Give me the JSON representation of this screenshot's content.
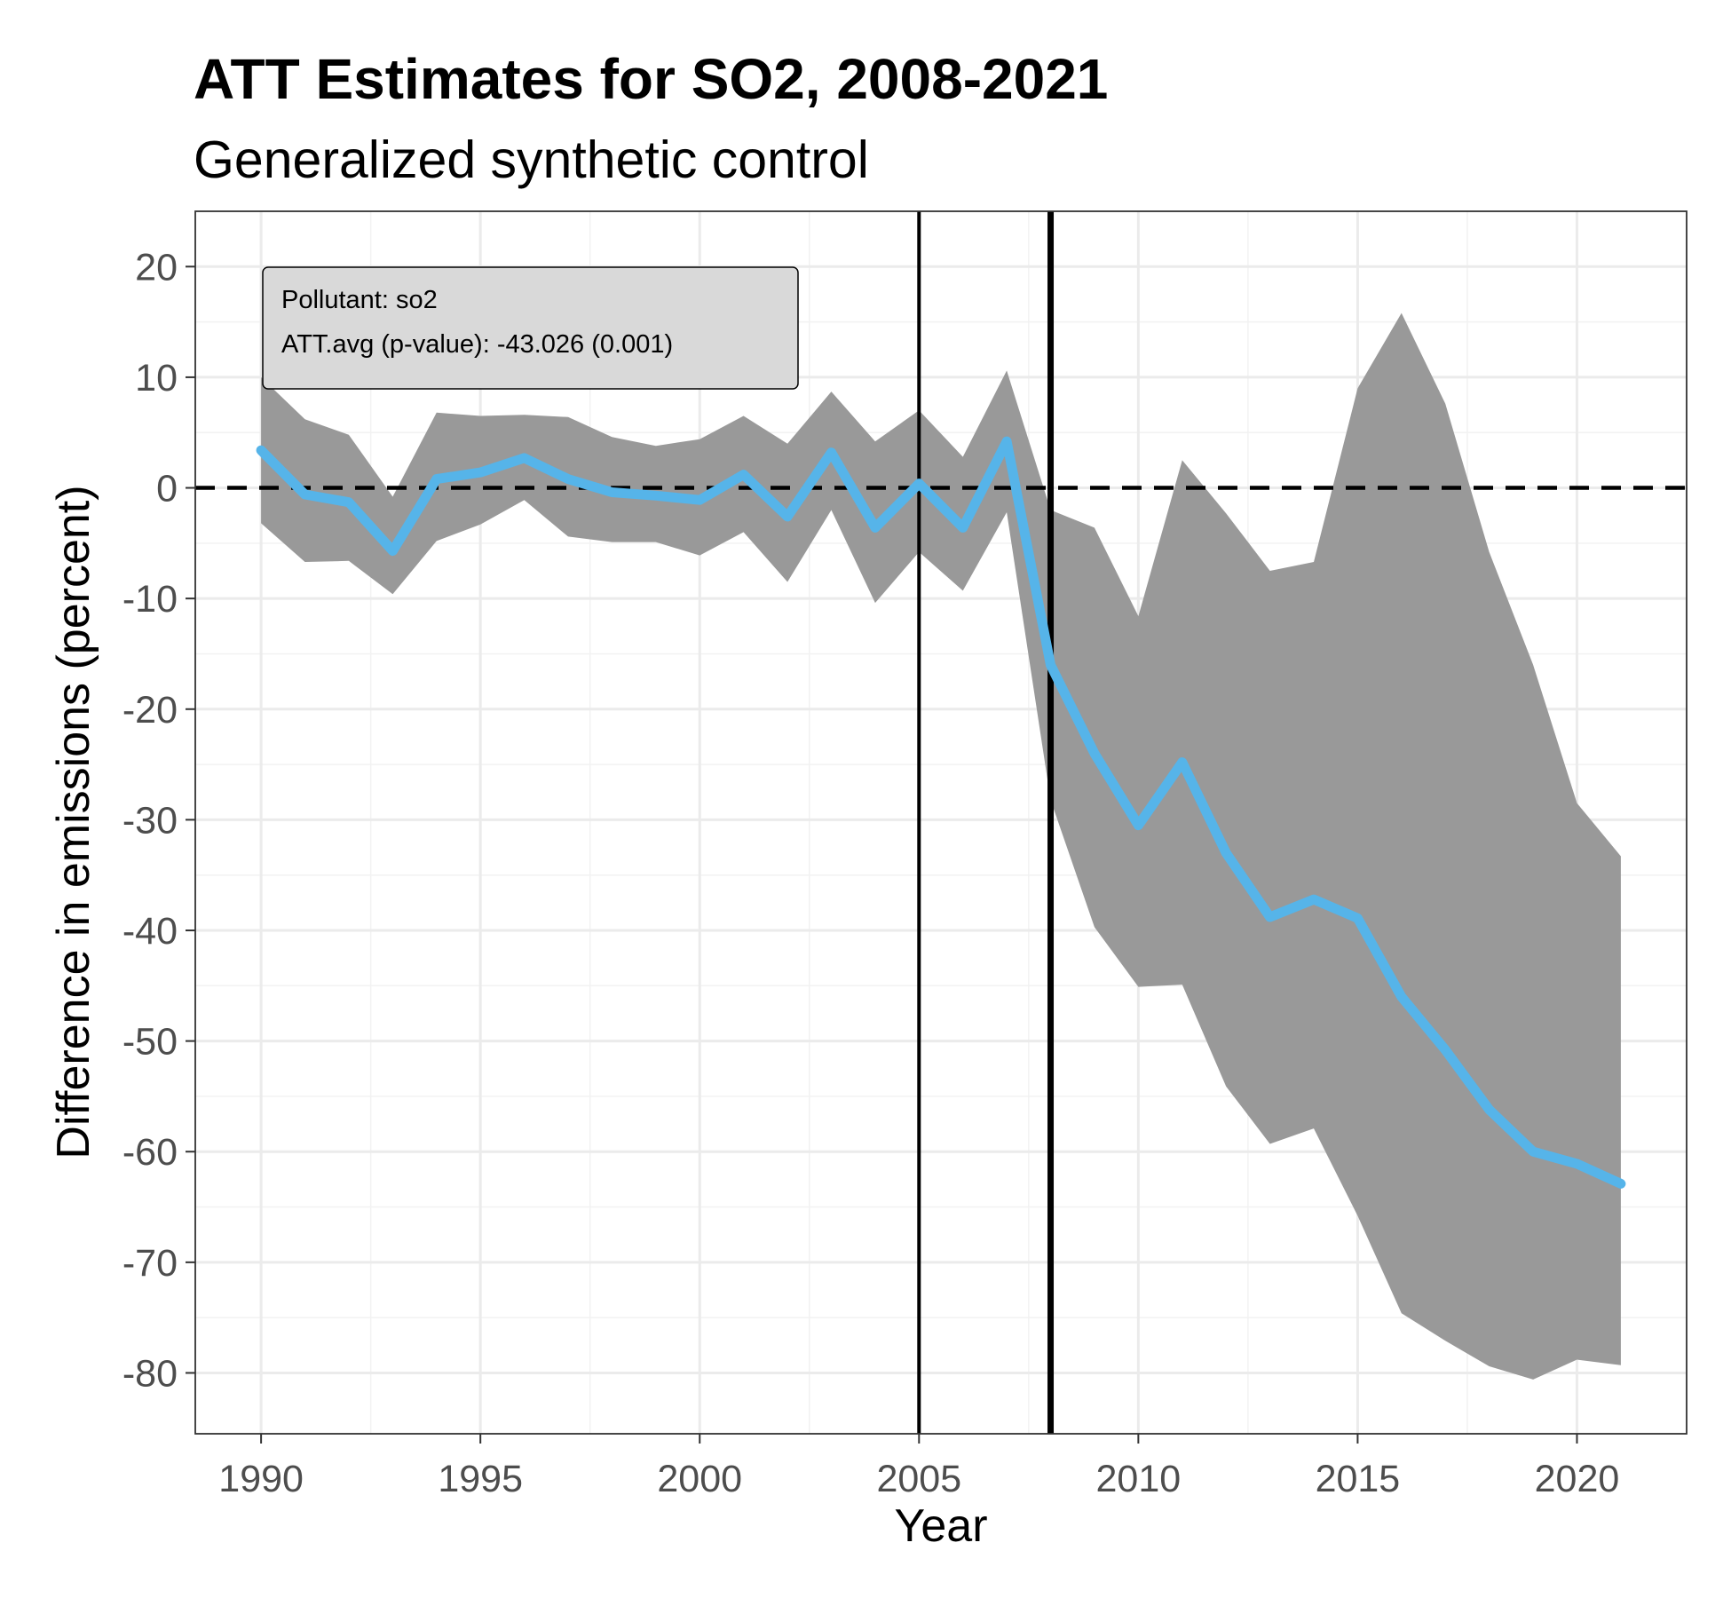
{
  "chart_data": {
    "type": "line",
    "title": "ATT Estimates for SO2, 2008-2021",
    "subtitle": "Generalized synthetic control",
    "xlabel": "Year",
    "ylabel": "Difference in emissions (percent)",
    "xlim": [
      1988.5,
      2022.5
    ],
    "ylim": [
      -85.5,
      25
    ],
    "x_ticks": [
      1990,
      1995,
      2000,
      2005,
      2010,
      2015,
      2020
    ],
    "x_tick_labels": [
      "1990",
      "1995",
      "2000",
      "2005",
      "2010",
      "2015",
      "2020"
    ],
    "y_ticks": [
      20,
      10,
      0,
      -10,
      -20,
      -30,
      -40,
      -50,
      -60,
      -70,
      -80
    ],
    "y_tick_labels": [
      "20",
      "10",
      "0",
      "-10",
      "-20",
      "-30",
      "-40",
      "-50",
      "-60",
      "-70",
      "-80"
    ],
    "grid": true,
    "x": [
      1990,
      1991,
      1992,
      1993,
      1994,
      1995,
      1996,
      1997,
      1998,
      1999,
      2000,
      2001,
      2002,
      2003,
      2004,
      2005,
      2006,
      2007,
      2008,
      2009,
      2010,
      2011,
      2012,
      2013,
      2014,
      2015,
      2016,
      2017,
      2018,
      2019,
      2020,
      2021
    ],
    "series": [
      {
        "values": [
          3.4,
          -0.6,
          -1.3,
          -5.7,
          0.8,
          1.4,
          2.7,
          0.8,
          -0.4,
          -0.7,
          -1.1,
          1.2,
          -2.6,
          3.2,
          -3.6,
          0.4,
          -3.6,
          4.2,
          -16.0,
          -24.0,
          -30.5,
          -24.8,
          -33.0,
          -38.8,
          -37.2,
          -38.9,
          -46.0,
          -50.8,
          -56.2,
          -60.0,
          -61.1,
          -62.9
        ],
        "color": "#56b4e9"
      }
    ],
    "band": {
      "upper": [
        10.0,
        6.2,
        4.8,
        -0.8,
        6.8,
        6.5,
        6.6,
        6.4,
        4.6,
        3.8,
        4.4,
        6.5,
        4.0,
        8.7,
        4.2,
        7.0,
        2.8,
        10.6,
        -2.0,
        -3.6,
        -11.6,
        2.5,
        -2.3,
        -7.5,
        -6.7,
        9.0,
        15.8,
        7.6,
        -5.8,
        -16.0,
        -28.5,
        -33.3
      ],
      "lower": [
        -3.2,
        -6.7,
        -6.6,
        -9.6,
        -4.8,
        -3.3,
        -1.1,
        -4.4,
        -4.9,
        -4.9,
        -6.1,
        -4.0,
        -8.5,
        -2.0,
        -10.4,
        -5.8,
        -9.3,
        -2.2,
        -28.2,
        -39.7,
        -45.1,
        -44.9,
        -54.1,
        -59.3,
        -57.9,
        -65.8,
        -74.6,
        -77.1,
        -79.4,
        -80.6,
        -78.8,
        -79.3
      ],
      "color": "#999999"
    },
    "reference_lines": {
      "horizontal_dashed_y": 0,
      "vertical_x": [
        2005,
        2008
      ]
    },
    "annotation": {
      "lines": [
        "Pollutant: so2",
        "ATT.avg (p-value): -43.026 (0.001)"
      ],
      "position": "top-left",
      "fill": "#d9d9d9"
    }
  }
}
